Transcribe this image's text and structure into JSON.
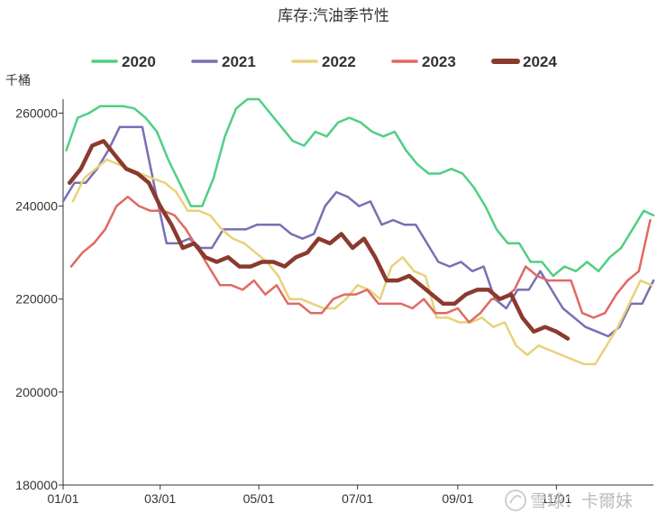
{
  "chart_data": {
    "type": "line",
    "title": "库存:汽油季节性",
    "unit": "千桶",
    "x_ticks": [
      "01/01",
      "03/01",
      "05/01",
      "07/01",
      "09/01",
      "11/01"
    ],
    "y_ticks": [
      "180000",
      "200000",
      "220000",
      "240000",
      "260000"
    ],
    "ylim": [
      180000,
      263000
    ],
    "xlim": [
      "01/01",
      "12/31"
    ],
    "grid": false,
    "legend_position": "top",
    "series": [
      {
        "name": "2020",
        "color": "#4fcf83",
        "points": [
          [
            "01/03",
            252000
          ],
          [
            "01/10",
            259000
          ],
          [
            "01/17",
            260000
          ],
          [
            "01/24",
            261500
          ],
          [
            "01/31",
            261500
          ],
          [
            "02/07",
            261500
          ],
          [
            "02/14",
            261000
          ],
          [
            "02/21",
            259000
          ],
          [
            "02/28",
            256000
          ],
          [
            "03/06",
            250000
          ],
          [
            "03/13",
            245000
          ],
          [
            "03/20",
            240000
          ],
          [
            "03/27",
            240000
          ],
          [
            "04/03",
            246000
          ],
          [
            "04/10",
            255000
          ],
          [
            "04/17",
            261000
          ],
          [
            "04/24",
            263000
          ],
          [
            "05/01",
            263000
          ],
          [
            "05/08",
            260000
          ],
          [
            "05/15",
            257000
          ],
          [
            "05/22",
            254000
          ],
          [
            "05/29",
            253000
          ],
          [
            "06/05",
            256000
          ],
          [
            "06/12",
            255000
          ],
          [
            "06/19",
            258000
          ],
          [
            "06/26",
            259000
          ],
          [
            "07/03",
            258000
          ],
          [
            "07/10",
            256000
          ],
          [
            "07/17",
            255000
          ],
          [
            "07/24",
            256000
          ],
          [
            "07/31",
            252000
          ],
          [
            "08/07",
            249000
          ],
          [
            "08/14",
            247000
          ],
          [
            "08/21",
            247000
          ],
          [
            "08/28",
            248000
          ],
          [
            "09/04",
            247000
          ],
          [
            "09/11",
            244000
          ],
          [
            "09/18",
            240000
          ],
          [
            "09/25",
            235000
          ],
          [
            "10/02",
            232000
          ],
          [
            "10/09",
            232000
          ],
          [
            "10/16",
            228000
          ],
          [
            "10/23",
            228000
          ],
          [
            "10/30",
            225000
          ],
          [
            "11/06",
            227000
          ],
          [
            "11/13",
            226000
          ],
          [
            "11/20",
            228000
          ],
          [
            "11/27",
            226000
          ],
          [
            "12/04",
            229000
          ],
          [
            "12/11",
            231000
          ],
          [
            "12/18",
            235000
          ],
          [
            "12/25",
            239000
          ],
          [
            "12/31",
            238000
          ]
        ]
      },
      {
        "name": "2021",
        "color": "#7a6fb3",
        "points": [
          [
            "01/01",
            241000
          ],
          [
            "01/08",
            245000
          ],
          [
            "01/15",
            245000
          ],
          [
            "01/22",
            248000
          ],
          [
            "01/29",
            252000
          ],
          [
            "02/05",
            257000
          ],
          [
            "02/12",
            257000
          ],
          [
            "02/19",
            257000
          ],
          [
            "02/26",
            245000
          ],
          [
            "03/05",
            232000
          ],
          [
            "03/12",
            232000
          ],
          [
            "03/19",
            233000
          ],
          [
            "03/26",
            231000
          ],
          [
            "04/02",
            231000
          ],
          [
            "04/09",
            235000
          ],
          [
            "04/16",
            235000
          ],
          [
            "04/23",
            235000
          ],
          [
            "04/30",
            236000
          ],
          [
            "05/07",
            236000
          ],
          [
            "05/14",
            236000
          ],
          [
            "05/21",
            234000
          ],
          [
            "05/28",
            233000
          ],
          [
            "06/04",
            234000
          ],
          [
            "06/11",
            240000
          ],
          [
            "06/18",
            243000
          ],
          [
            "06/25",
            242000
          ],
          [
            "07/02",
            240000
          ],
          [
            "07/09",
            241000
          ],
          [
            "07/16",
            236000
          ],
          [
            "07/23",
            237000
          ],
          [
            "07/30",
            236000
          ],
          [
            "08/06",
            236000
          ],
          [
            "08/13",
            232000
          ],
          [
            "08/20",
            228000
          ],
          [
            "08/27",
            227000
          ],
          [
            "09/03",
            228000
          ],
          [
            "09/10",
            226000
          ],
          [
            "09/17",
            227000
          ],
          [
            "09/24",
            220000
          ],
          [
            "10/01",
            218000
          ],
          [
            "10/08",
            222000
          ],
          [
            "10/15",
            222000
          ],
          [
            "10/22",
            226000
          ],
          [
            "10/29",
            222000
          ],
          [
            "11/05",
            218000
          ],
          [
            "11/12",
            216000
          ],
          [
            "11/19",
            214000
          ],
          [
            "11/26",
            213000
          ],
          [
            "12/03",
            212000
          ],
          [
            "12/10",
            214000
          ],
          [
            "12/17",
            219000
          ],
          [
            "12/24",
            219000
          ],
          [
            "12/31",
            224000
          ]
        ]
      },
      {
        "name": "2022",
        "color": "#e8d27a",
        "points": [
          [
            "01/07",
            241000
          ],
          [
            "01/14",
            246000
          ],
          [
            "01/21",
            248000
          ],
          [
            "01/28",
            250000
          ],
          [
            "02/04",
            249000
          ],
          [
            "02/11",
            248000
          ],
          [
            "02/18",
            247000
          ],
          [
            "02/25",
            246000
          ],
          [
            "03/04",
            245000
          ],
          [
            "03/11",
            243000
          ],
          [
            "03/18",
            239000
          ],
          [
            "03/25",
            239000
          ],
          [
            "04/01",
            238000
          ],
          [
            "04/08",
            235000
          ],
          [
            "04/15",
            233000
          ],
          [
            "04/22",
            232000
          ],
          [
            "04/29",
            230000
          ],
          [
            "05/06",
            228000
          ],
          [
            "05/13",
            225000
          ],
          [
            "05/20",
            220000
          ],
          [
            "05/27",
            220000
          ],
          [
            "06/03",
            219000
          ],
          [
            "06/10",
            218000
          ],
          [
            "06/17",
            218000
          ],
          [
            "06/24",
            220000
          ],
          [
            "07/01",
            223000
          ],
          [
            "07/08",
            222000
          ],
          [
            "07/15",
            220000
          ],
          [
            "07/22",
            227000
          ],
          [
            "07/29",
            229000
          ],
          [
            "08/05",
            226000
          ],
          [
            "08/12",
            225000
          ],
          [
            "08/19",
            216000
          ],
          [
            "08/26",
            216000
          ],
          [
            "09/02",
            215000
          ],
          [
            "09/09",
            215000
          ],
          [
            "09/16",
            216000
          ],
          [
            "09/23",
            214000
          ],
          [
            "09/30",
            215000
          ],
          [
            "10/07",
            210000
          ],
          [
            "10/14",
            208000
          ],
          [
            "10/21",
            210000
          ],
          [
            "10/28",
            209000
          ],
          [
            "11/04",
            208000
          ],
          [
            "11/11",
            207000
          ],
          [
            "11/18",
            206000
          ],
          [
            "11/25",
            206000
          ],
          [
            "12/02",
            210000
          ],
          [
            "12/09",
            214000
          ],
          [
            "12/16",
            219000
          ],
          [
            "12/23",
            224000
          ],
          [
            "12/30",
            223000
          ]
        ]
      },
      {
        "name": "2023",
        "color": "#e06a62",
        "points": [
          [
            "01/06",
            227000
          ],
          [
            "01/13",
            230000
          ],
          [
            "01/20",
            232000
          ],
          [
            "01/27",
            235000
          ],
          [
            "02/03",
            240000
          ],
          [
            "02/10",
            242000
          ],
          [
            "02/17",
            240000
          ],
          [
            "02/24",
            239000
          ],
          [
            "03/03",
            239000
          ],
          [
            "03/10",
            238000
          ],
          [
            "03/17",
            235000
          ],
          [
            "03/24",
            231000
          ],
          [
            "03/31",
            227000
          ],
          [
            "04/07",
            223000
          ],
          [
            "04/14",
            223000
          ],
          [
            "04/21",
            222000
          ],
          [
            "04/28",
            224000
          ],
          [
            "05/05",
            221000
          ],
          [
            "05/12",
            223000
          ],
          [
            "05/19",
            219000
          ],
          [
            "05/26",
            219000
          ],
          [
            "06/02",
            217000
          ],
          [
            "06/09",
            217000
          ],
          [
            "06/16",
            220000
          ],
          [
            "06/23",
            221000
          ],
          [
            "06/30",
            221000
          ],
          [
            "07/07",
            222000
          ],
          [
            "07/14",
            219000
          ],
          [
            "07/21",
            219000
          ],
          [
            "07/28",
            219000
          ],
          [
            "08/04",
            218000
          ],
          [
            "08/11",
            220000
          ],
          [
            "08/18",
            217000
          ],
          [
            "08/25",
            217000
          ],
          [
            "09/01",
            218000
          ],
          [
            "09/08",
            215000
          ],
          [
            "09/15",
            217000
          ],
          [
            "09/22",
            220000
          ],
          [
            "09/29",
            220000
          ],
          [
            "10/06",
            222000
          ],
          [
            "10/13",
            227000
          ],
          [
            "10/20",
            225000
          ],
          [
            "10/27",
            224000
          ],
          [
            "11/03",
            224000
          ],
          [
            "11/10",
            224000
          ],
          [
            "11/17",
            217000
          ],
          [
            "11/24",
            216000
          ],
          [
            "12/01",
            217000
          ],
          [
            "12/08",
            221000
          ],
          [
            "12/15",
            224000
          ],
          [
            "12/22",
            226000
          ],
          [
            "12/29",
            237000
          ]
        ]
      },
      {
        "name": "2024",
        "color": "#8b3a2e",
        "points": [
          [
            "01/05",
            245000
          ],
          [
            "01/12",
            248000
          ],
          [
            "01/19",
            253000
          ],
          [
            "01/26",
            254000
          ],
          [
            "02/02",
            251000
          ],
          [
            "02/09",
            248000
          ],
          [
            "02/16",
            247000
          ],
          [
            "02/23",
            245000
          ],
          [
            "03/01",
            240000
          ],
          [
            "03/08",
            236000
          ],
          [
            "03/15",
            231000
          ],
          [
            "03/22",
            232000
          ],
          [
            "03/29",
            229000
          ],
          [
            "04/05",
            228000
          ],
          [
            "04/12",
            229000
          ],
          [
            "04/19",
            227000
          ],
          [
            "04/26",
            227000
          ],
          [
            "05/03",
            228000
          ],
          [
            "05/10",
            228000
          ],
          [
            "05/17",
            227000
          ],
          [
            "05/24",
            229000
          ],
          [
            "05/31",
            230000
          ],
          [
            "06/07",
            233000
          ],
          [
            "06/14",
            232000
          ],
          [
            "06/21",
            234000
          ],
          [
            "06/28",
            231000
          ],
          [
            "07/05",
            233000
          ],
          [
            "07/12",
            229000
          ],
          [
            "07/19",
            224000
          ],
          [
            "07/26",
            224000
          ],
          [
            "08/02",
            225000
          ],
          [
            "08/09",
            223000
          ],
          [
            "08/16",
            221000
          ],
          [
            "08/23",
            219000
          ],
          [
            "08/30",
            219000
          ],
          [
            "09/06",
            221000
          ],
          [
            "09/13",
            222000
          ],
          [
            "09/20",
            222000
          ],
          [
            "09/27",
            220000
          ],
          [
            "10/04",
            221000
          ],
          [
            "10/11",
            216000
          ],
          [
            "10/18",
            213000
          ],
          [
            "10/25",
            214000
          ],
          [
            "11/01",
            213000
          ],
          [
            "11/08",
            211500
          ]
        ]
      }
    ]
  },
  "watermark": {
    "text": "雪球：卡爾妹"
  }
}
